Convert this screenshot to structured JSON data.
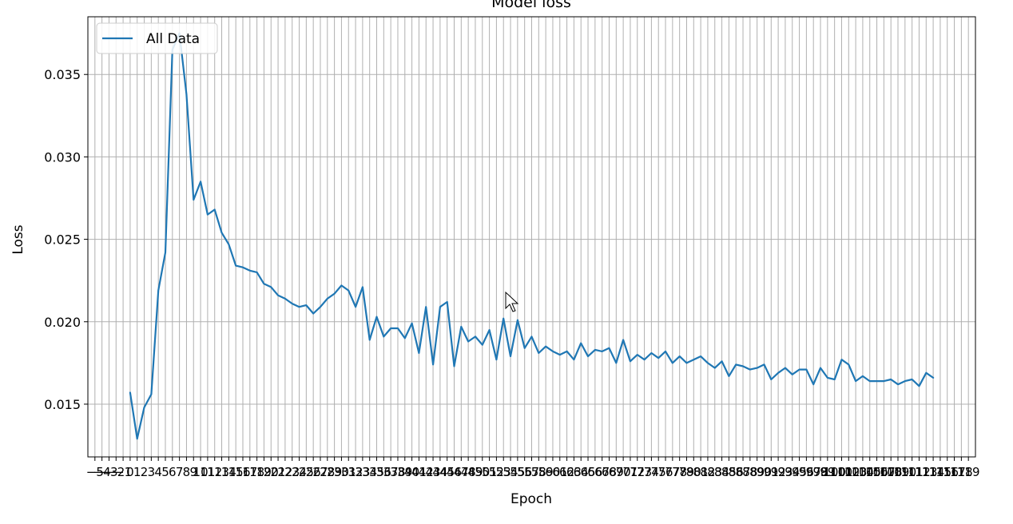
{
  "chart_data": {
    "type": "line",
    "title": "Model loss",
    "xlabel": "Epoch",
    "ylabel": "Loss",
    "xlim": [
      -6,
      120
    ],
    "ylim": [
      0.0118,
      0.0385
    ],
    "xticks_start": -5,
    "xticks_end": 119,
    "yticks": [
      0.015,
      0.02,
      0.025,
      0.03,
      0.035
    ],
    "ytick_labels": [
      "0.015",
      "0.020",
      "0.025",
      "0.030",
      "0.035"
    ],
    "grid": true,
    "legend_position": "top-left",
    "series": [
      {
        "name": "All Data",
        "color": "#1f77b4",
        "values": [
          0.0157,
          0.0129,
          0.0148,
          0.0156,
          0.0219,
          0.0242,
          0.0365,
          0.0375,
          0.0338,
          0.0274,
          0.0285,
          0.0265,
          0.0268,
          0.0254,
          0.0247,
          0.0234,
          0.0233,
          0.0231,
          0.023,
          0.0223,
          0.0221,
          0.0216,
          0.0214,
          0.0211,
          0.0209,
          0.021,
          0.0205,
          0.0209,
          0.0214,
          0.0217,
          0.0222,
          0.0219,
          0.0209,
          0.0221,
          0.0189,
          0.0203,
          0.0191,
          0.0196,
          0.0196,
          0.019,
          0.0199,
          0.0181,
          0.0209,
          0.0174,
          0.0209,
          0.0212,
          0.0173,
          0.0197,
          0.0188,
          0.0191,
          0.0186,
          0.0195,
          0.0177,
          0.0202,
          0.0179,
          0.0201,
          0.0184,
          0.0191,
          0.0181,
          0.0185,
          0.0182,
          0.018,
          0.0182,
          0.0177,
          0.0187,
          0.0179,
          0.0183,
          0.0182,
          0.0184,
          0.0175,
          0.0189,
          0.0176,
          0.018,
          0.0177,
          0.0181,
          0.0178,
          0.0182,
          0.0175,
          0.0179,
          0.0175,
          0.0177,
          0.0179,
          0.0175,
          0.0172,
          0.0176,
          0.0167,
          0.0174,
          0.0173,
          0.0171,
          0.0172,
          0.0174,
          0.0165,
          0.0169,
          0.0172,
          0.0168,
          0.0171,
          0.0171,
          0.0162,
          0.0172,
          0.0166,
          0.0165,
          0.0177,
          0.0174,
          0.0164,
          0.0167,
          0.0164,
          0.0164,
          0.0164,
          0.0165,
          0.0162,
          0.0164,
          0.0165,
          0.0161,
          0.0169,
          0.0166
        ]
      }
    ]
  }
}
